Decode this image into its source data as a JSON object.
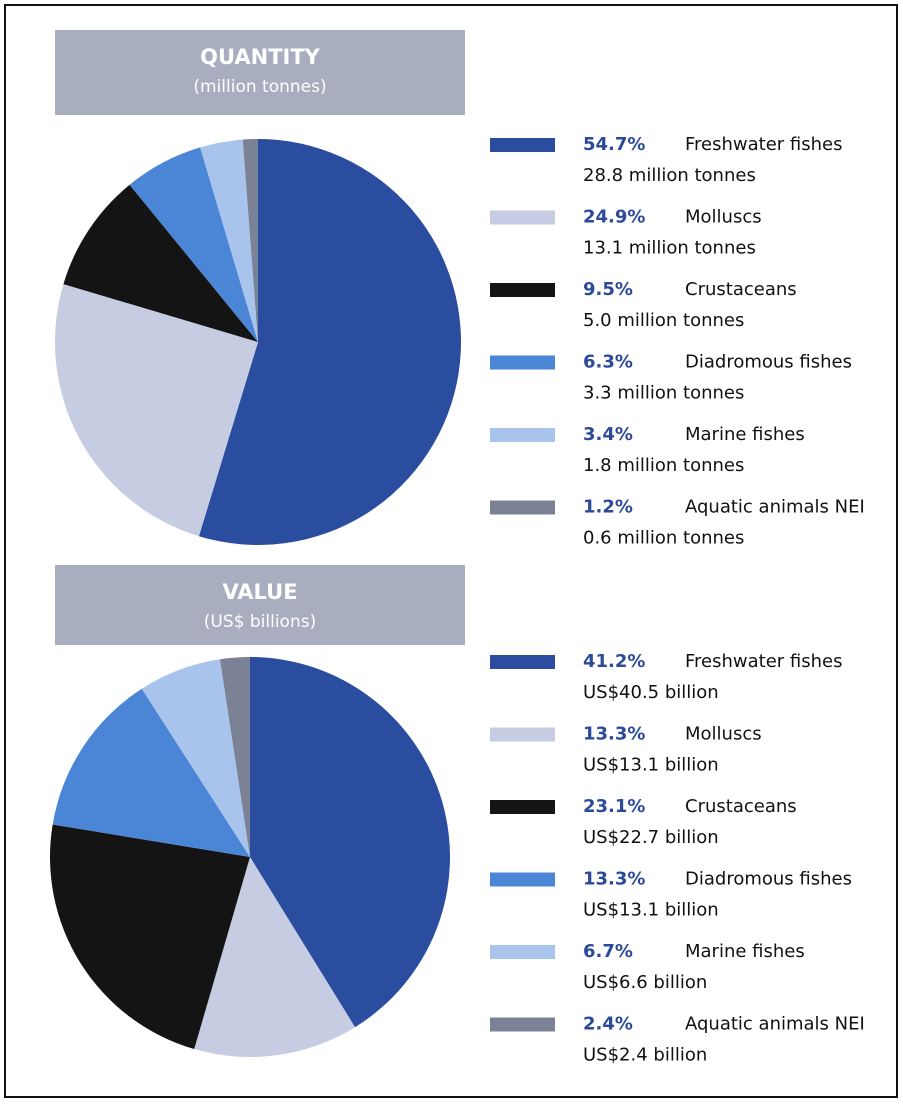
{
  "chart_data": [
    {
      "type": "pie",
      "title": "QUANTITY",
      "subtitle": "(million tonnes)",
      "categories": [
        "Freshwater fishes",
        "Molluscs",
        "Crustaceans",
        "Diadromous fishes",
        "Marine fishes",
        "Aquatic animals NEI"
      ],
      "values": [
        54.7,
        24.9,
        9.5,
        6.3,
        3.4,
        1.2
      ],
      "value_labels": [
        "54.7%",
        "24.9%",
        "9.5%",
        "6.3%",
        "3.4%",
        "1.2%"
      ],
      "details": [
        "28.8 million tonnes",
        "13.1 million tonnes",
        "5.0 million tonnes",
        "3.3 million tonnes",
        "1.8 million tonnes",
        "0.6 million tonnes"
      ],
      "colors": [
        "#2a4da0",
        "#c6cce2",
        "#141414",
        "#4b85d6",
        "#a8c4ec",
        "#7b8296"
      ]
    },
    {
      "type": "pie",
      "title": "VALUE",
      "subtitle": "(US$ billions)",
      "categories": [
        "Freshwater fishes",
        "Molluscs",
        "Crustaceans",
        "Diadromous fishes",
        "Marine fishes",
        "Aquatic animals NEI"
      ],
      "values": [
        41.2,
        13.3,
        23.1,
        13.3,
        6.7,
        2.4
      ],
      "value_labels": [
        "41.2%",
        "13.3%",
        "23.1%",
        "13.3%",
        "6.7%",
        "2.4%"
      ],
      "details": [
        "US$40.5 billion",
        "US$13.1 billion",
        "US$22.7 billion",
        "US$13.1 billion",
        "US$6.6 billion",
        "US$2.4 billion"
      ],
      "colors": [
        "#2a4da0",
        "#c6cce2",
        "#141414",
        "#4b85d6",
        "#a8c4ec",
        "#7b8296"
      ]
    }
  ]
}
